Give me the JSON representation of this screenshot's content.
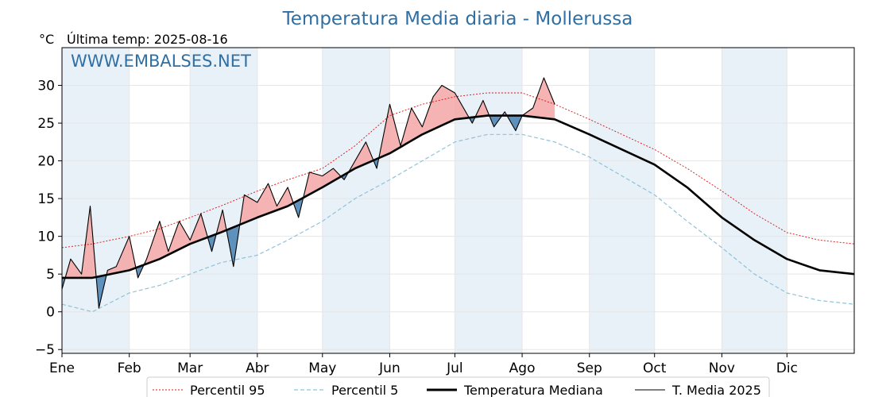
{
  "title": "Temperatura Media diaria - Mollerussa",
  "unit_label": "°C",
  "last_temp_label": "Última temp: 2025-08-16",
  "watermark": "WWW.EMBALSES.NET",
  "colors": {
    "p95": "#e01010",
    "p5": "#8fc3d8",
    "median": "#000000",
    "year": "#000000",
    "above_fill": "#f4a6a6",
    "above_fill_strong": "#e66060",
    "below_fill": "#4f86b5",
    "band": "#e8f0f8"
  },
  "legend": [
    {
      "key": "p95",
      "label": "Percentil 95"
    },
    {
      "key": "p5",
      "label": "Percentil 5"
    },
    {
      "key": "median",
      "label": "Temperatura Mediana"
    },
    {
      "key": "year",
      "label": "T. Media 2025"
    }
  ],
  "chart_data": {
    "type": "line",
    "title": "Temperatura Media diaria - Mollerussa",
    "ylabel": "°C",
    "ylim": [
      -5.5,
      35
    ],
    "yticks": [
      -5,
      0,
      5,
      10,
      15,
      20,
      25,
      30
    ],
    "ytick_labels": [
      "−5",
      "0",
      "5",
      "10",
      "15",
      "20",
      "25",
      "30"
    ],
    "xlim": [
      1,
      366
    ],
    "months": [
      {
        "label": "Ene",
        "day": 1
      },
      {
        "label": "Feb",
        "day": 32
      },
      {
        "label": "Mar",
        "day": 60
      },
      {
        "label": "Abr",
        "day": 91
      },
      {
        "label": "May",
        "day": 121
      },
      {
        "label": "Jun",
        "day": 152
      },
      {
        "label": "Jul",
        "day": 182
      },
      {
        "label": "Ago",
        "day": 213
      },
      {
        "label": "Sep",
        "day": 244
      },
      {
        "label": "Oct",
        "day": 274
      },
      {
        "label": "Nov",
        "day": 305
      },
      {
        "label": "Dic",
        "day": 335
      }
    ],
    "grid": true,
    "legend_position": "bottom",
    "series": [
      {
        "name": "Percentil 95",
        "key": "p95",
        "x": [
          1,
          15,
          32,
          46,
          60,
          74,
          91,
          105,
          121,
          136,
          152,
          167,
          182,
          197,
          213,
          228,
          244,
          259,
          274,
          289,
          305,
          320,
          335,
          350,
          366
        ],
        "y": [
          8.5,
          9.0,
          10.0,
          11.0,
          12.5,
          14.0,
          16.0,
          17.5,
          19.0,
          22.0,
          26.0,
          27.5,
          28.5,
          29.0,
          29.0,
          27.5,
          25.5,
          23.5,
          21.5,
          19.0,
          16.0,
          13.0,
          10.5,
          9.5,
          9.0
        ]
      },
      {
        "name": "Percentil 5",
        "key": "p5",
        "x": [
          1,
          15,
          32,
          46,
          60,
          74,
          91,
          105,
          121,
          136,
          152,
          167,
          182,
          197,
          213,
          228,
          244,
          259,
          274,
          289,
          305,
          320,
          335,
          350,
          366
        ],
        "y": [
          1.0,
          0.0,
          2.5,
          3.5,
          5.0,
          6.5,
          7.5,
          9.5,
          12.0,
          15.0,
          17.5,
          20.0,
          22.5,
          23.5,
          23.5,
          22.5,
          20.5,
          18.0,
          15.5,
          12.0,
          8.5,
          5.0,
          2.5,
          1.5,
          1.0
        ]
      },
      {
        "name": "Temperatura Mediana",
        "key": "median",
        "x": [
          1,
          15,
          32,
          46,
          60,
          74,
          91,
          105,
          121,
          136,
          152,
          167,
          182,
          197,
          213,
          228,
          244,
          259,
          274,
          289,
          305,
          320,
          335,
          350,
          366
        ],
        "y": [
          4.5,
          4.5,
          5.5,
          7.0,
          9.0,
          10.5,
          12.5,
          14.0,
          16.5,
          19.0,
          21.0,
          23.5,
          25.5,
          26.0,
          26.0,
          25.5,
          23.5,
          21.5,
          19.5,
          16.5,
          12.5,
          9.5,
          7.0,
          5.5,
          5.0
        ]
      },
      {
        "name": "T. Media 2025",
        "key": "year",
        "x": [
          1,
          5,
          10,
          14,
          18,
          22,
          26,
          32,
          36,
          40,
          46,
          50,
          55,
          60,
          65,
          70,
          75,
          80,
          85,
          91,
          96,
          100,
          105,
          110,
          115,
          121,
          126,
          131,
          136,
          141,
          146,
          152,
          157,
          162,
          167,
          172,
          176,
          182,
          186,
          190,
          195,
          200,
          205,
          210,
          213,
          218,
          223,
          228
        ],
        "y": [
          3.0,
          7.0,
          5.0,
          14.0,
          0.5,
          5.5,
          6.0,
          10.0,
          4.5,
          7.0,
          12.0,
          8.0,
          12.0,
          9.5,
          13.0,
          8.0,
          13.5,
          6.0,
          15.5,
          14.5,
          17.0,
          14.0,
          16.5,
          12.5,
          18.5,
          18.0,
          19.0,
          17.5,
          20.0,
          22.5,
          19.0,
          27.5,
          22.0,
          27.0,
          24.5,
          28.5,
          30.0,
          29.0,
          27.0,
          25.0,
          28.0,
          24.5,
          26.5,
          24.0,
          26.0,
          27.0,
          31.0,
          27.5
        ]
      }
    ]
  }
}
